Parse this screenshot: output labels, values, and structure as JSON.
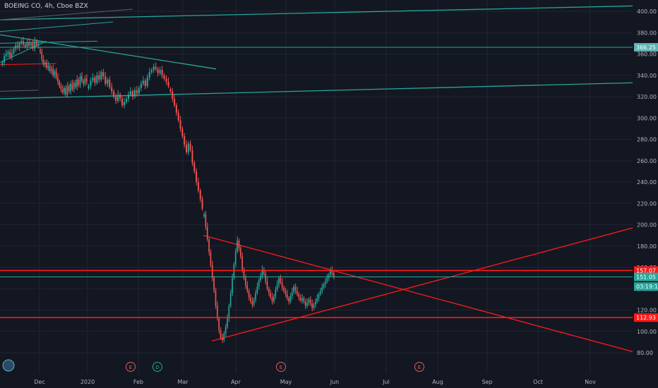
{
  "title": "BOEING CO, 4h, Cboe BZX",
  "chart_data": {
    "type": "candlestick",
    "symbol": "BOEING CO",
    "interval": "4h",
    "exchange": "Cboe BZX",
    "ylim": [
      72,
      410
    ],
    "y_ticks": [
      80,
      100,
      120,
      140,
      160,
      180,
      200,
      220,
      240,
      260,
      280,
      300,
      320,
      340,
      360,
      380,
      400
    ],
    "y_tick_labels": [
      "80.00",
      "100.00",
      "120.00",
      "140.00",
      "160.00",
      "180.00",
      "200.00",
      "220.00",
      "240.00",
      "260.00",
      "280.00",
      "300.00",
      "320.00",
      "340.00",
      "360.00",
      "380.00",
      "400.00"
    ],
    "x_labels": [
      "Dec",
      "2020",
      "Feb",
      "Mar",
      "Apr",
      "May",
      "Jun",
      "Jul",
      "Aug",
      "Sep",
      "Oct",
      "Nov"
    ],
    "price_labels": [
      {
        "text": "366.25",
        "value": 366.25,
        "color": "#5fb3b3"
      },
      {
        "text": "157.07",
        "value": 157.07,
        "color": "#ff1a1a"
      },
      {
        "text": "151.05",
        "value": 151.05,
        "color": "#26a69a"
      },
      {
        "text": "03:19:17",
        "value": 142,
        "color": "#26a69a"
      },
      {
        "text": "112.93",
        "value": 112.93,
        "color": "#ff1a1a"
      }
    ],
    "horizontal_levels": [
      {
        "value": 366.25,
        "color": "#26a69a"
      },
      {
        "value": 157.07,
        "color": "#ff1a1a"
      },
      {
        "value": 151.05,
        "color": "#26a69a"
      },
      {
        "value": 112.93,
        "color": "#ff1a1a"
      }
    ],
    "event_markers": [
      {
        "letter": "E",
        "color": "#e05a5a"
      },
      {
        "letter": "D",
        "color": "#26a69a"
      },
      {
        "letter": "E",
        "color": "#e05a5a"
      },
      {
        "letter": "E",
        "color": "#e05a5a"
      }
    ],
    "series": [
      {
        "period": "Nov",
        "values": [
          352,
          358,
          360,
          362,
          357,
          361,
          365,
          368,
          366,
          370,
          372,
          369,
          367,
          371,
          368,
          370,
          365,
          372,
          368,
          369
        ]
      },
      {
        "period": "Dec",
        "values": [
          362,
          355,
          350,
          352,
          347,
          349,
          344,
          346,
          340,
          344,
          338,
          334,
          330,
          327,
          324,
          328,
          322,
          330,
          325,
          332,
          327,
          333,
          329,
          336,
          331,
          339,
          335,
          332,
          337,
          334
        ]
      },
      {
        "period": "Jan",
        "values": [
          330,
          335,
          338,
          333,
          340,
          336,
          343,
          339,
          332,
          336,
          329,
          325,
          320,
          316,
          322,
          318,
          312,
          315,
          318,
          322,
          325,
          320,
          326,
          323,
          328,
          332,
          335,
          330,
          338,
          343,
          345,
          348,
          346,
          342,
          345,
          340,
          337,
          334,
          330
        ]
      },
      {
        "period": "Feb",
        "values": [
          325,
          318,
          312,
          305,
          298,
          290,
          283,
          275,
          268,
          276,
          270,
          258,
          250,
          240,
          232,
          224,
          215
        ]
      },
      {
        "period": "Mar",
        "values": [
          210,
          198,
          186,
          174,
          162,
          150,
          138,
          124,
          112,
          101,
          94,
          92,
          98,
          104,
          112,
          124,
          136,
          150,
          163,
          175,
          185,
          178,
          170,
          158,
          150,
          143,
          138,
          132,
          128,
          125,
          130,
          136,
          142,
          148,
          152,
          158,
          154,
          147,
          140,
          136,
          132,
          128,
          133,
          139,
          144,
          150,
          146,
          141,
          138,
          135,
          131,
          128,
          133,
          137,
          142,
          138,
          135,
          132,
          129,
          131,
          128,
          124,
          127,
          130,
          126,
          122,
          125,
          128,
          131,
          135,
          138,
          141,
          144,
          147,
          150,
          153,
          157,
          155,
          151
        ]
      }
    ],
    "trend_lines": [
      {
        "color": "#26a69a",
        "from": [
          0,
          392
        ],
        "to": [
          896,
          405
        ]
      },
      {
        "color": "#26a69a",
        "from": [
          0,
          318
        ],
        "to": [
          896,
          333
        ]
      },
      {
        "color": "#26a69a",
        "from": [
          0,
          378
        ],
        "to": [
          306,
          346
        ]
      },
      {
        "color": "#ff1a1a",
        "from": [
          288,
          190
        ],
        "to": [
          896,
          81
        ]
      },
      {
        "color": "#ff1a1a",
        "from": [
          300,
          91
        ],
        "to": [
          896,
          197
        ]
      }
    ]
  }
}
